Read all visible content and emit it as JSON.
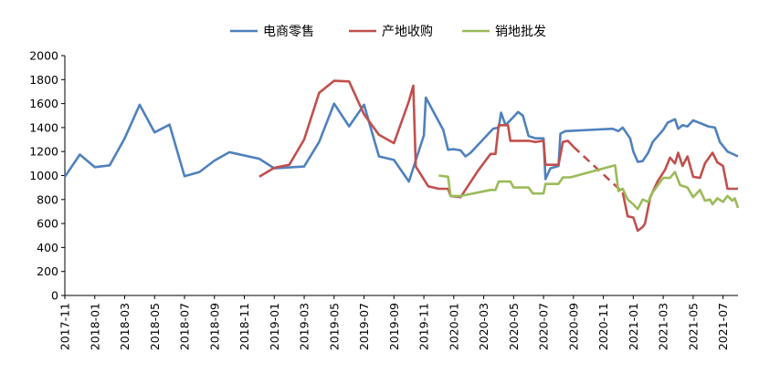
{
  "chart_data": {
    "type": "line",
    "title": "",
    "xlabel": "",
    "ylabel": "",
    "ylim": [
      0,
      2000
    ],
    "yticks": [
      0,
      200,
      400,
      600,
      800,
      1000,
      1200,
      1400,
      1600,
      1800,
      2000
    ],
    "xlim": [
      "2017-11",
      "2021-08"
    ],
    "xticks": [
      "2017-11",
      "2018-01",
      "2018-03",
      "2018-05",
      "2018-07",
      "2018-09",
      "2018-11",
      "2019-01",
      "2019-03",
      "2019-05",
      "2019-07",
      "2019-09",
      "2019-11",
      "2020-01",
      "2020-03",
      "2020-05",
      "2020-07",
      "2020-09",
      "2020-11",
      "2021-01",
      "2021-03",
      "2021-05",
      "2021-07"
    ],
    "grid": false,
    "legend_position": "top",
    "series": [
      {
        "name": "电商零售",
        "color": "#4F81BD",
        "style": "solid",
        "points": [
          [
            "2017-11-01",
            990
          ],
          [
            "2017-12-01",
            1175
          ],
          [
            "2018-01-01",
            1070
          ],
          [
            "2018-02-01",
            1085
          ],
          [
            "2018-03-01",
            1310
          ],
          [
            "2018-04-01",
            1590
          ],
          [
            "2018-05-01",
            1360
          ],
          [
            "2018-06-01",
            1425
          ],
          [
            "2018-07-01",
            995
          ],
          [
            "2018-08-01",
            1030
          ],
          [
            "2018-09-01",
            1125
          ],
          [
            "2018-10-01",
            1195
          ],
          [
            "2018-12-01",
            1140
          ],
          [
            "2019-01-01",
            1060
          ],
          [
            "2019-03-01",
            1075
          ],
          [
            "2019-04-01",
            1280
          ],
          [
            "2019-05-01",
            1600
          ],
          [
            "2019-06-01",
            1410
          ],
          [
            "2019-07-01",
            1590
          ],
          [
            "2019-08-01",
            1160
          ],
          [
            "2019-09-01",
            1130
          ],
          [
            "2019-10-01",
            950
          ],
          [
            "2019-11-01",
            1335
          ],
          [
            "2019-11-05",
            1650
          ],
          [
            "2019-12-10",
            1380
          ],
          [
            "2019-12-20",
            1215
          ],
          [
            "2020-01-01",
            1220
          ],
          [
            "2020-01-15",
            1210
          ],
          [
            "2020-01-25",
            1160
          ],
          [
            "2020-02-05",
            1190
          ],
          [
            "2020-03-20",
            1390
          ],
          [
            "2020-04-01",
            1400
          ],
          [
            "2020-04-06",
            1525
          ],
          [
            "2020-04-15",
            1420
          ],
          [
            "2020-05-01",
            1490
          ],
          [
            "2020-05-10",
            1530
          ],
          [
            "2020-05-20",
            1500
          ],
          [
            "2020-06-01",
            1330
          ],
          [
            "2020-06-15",
            1310
          ],
          [
            "2020-07-01",
            1310
          ],
          [
            "2020-07-05",
            970
          ],
          [
            "2020-07-15",
            1060
          ],
          [
            "2020-08-01",
            1080
          ],
          [
            "2020-08-05",
            1350
          ],
          [
            "2020-08-15",
            1370
          ],
          [
            "2020-11-20",
            1390
          ],
          [
            "2020-12-01",
            1370
          ],
          [
            "2020-12-10",
            1400
          ],
          [
            "2020-12-25",
            1310
          ],
          [
            "2021-01-01",
            1200
          ],
          [
            "2021-01-10",
            1115
          ],
          [
            "2021-01-20",
            1120
          ],
          [
            "2021-02-01",
            1190
          ],
          [
            "2021-02-10",
            1280
          ],
          [
            "2021-03-01",
            1380
          ],
          [
            "2021-03-10",
            1440
          ],
          [
            "2021-03-25",
            1470
          ],
          [
            "2021-04-01",
            1390
          ],
          [
            "2021-04-10",
            1420
          ],
          [
            "2021-04-20",
            1410
          ],
          [
            "2021-05-01",
            1460
          ],
          [
            "2021-05-20",
            1430
          ],
          [
            "2021-06-01",
            1410
          ],
          [
            "2021-06-15",
            1400
          ],
          [
            "2021-06-25",
            1280
          ],
          [
            "2021-07-10",
            1200
          ],
          [
            "2021-08-01",
            1160
          ]
        ]
      },
      {
        "name": "产地收购",
        "color": "#C0504D",
        "style": "solid",
        "points": [
          [
            "2018-12-01",
            990
          ],
          [
            "2019-01-01",
            1065
          ],
          [
            "2019-02-01",
            1090
          ],
          [
            "2019-03-01",
            1300
          ],
          [
            "2019-04-01",
            1690
          ],
          [
            "2019-05-01",
            1790
          ],
          [
            "2019-06-01",
            1785
          ],
          [
            "2019-07-01",
            1510
          ],
          [
            "2019-08-01",
            1340
          ],
          [
            "2019-09-01",
            1270
          ],
          [
            "2019-10-01",
            1620
          ],
          [
            "2019-10-10",
            1750
          ],
          [
            "2019-10-15",
            1075
          ],
          [
            "2019-11-10",
            910
          ],
          [
            "2019-12-01",
            890
          ],
          [
            "2019-12-20",
            890
          ],
          [
            "2019-12-25",
            830
          ],
          [
            "2020-01-15",
            820
          ],
          [
            "2020-02-20",
            1040
          ],
          [
            "2020-03-15",
            1180
          ],
          [
            "2020-03-25",
            1180
          ],
          [
            "2020-04-01",
            1420
          ],
          [
            "2020-04-20",
            1420
          ],
          [
            "2020-04-25",
            1290
          ],
          [
            "2020-06-01",
            1290
          ],
          [
            "2020-06-15",
            1280
          ],
          [
            "2020-07-01",
            1290
          ],
          [
            "2020-07-05",
            1090
          ],
          [
            "2020-08-01",
            1090
          ],
          [
            "2020-08-10",
            1280
          ],
          [
            "2020-08-20",
            1290
          ],
          [
            "2020-09-01",
            1240
          ]
        ]
      },
      {
        "name": "产地收购",
        "color": "#C0504D",
        "style": "dashed",
        "points": [
          [
            "2020-09-01",
            1240
          ],
          [
            "2020-12-10",
            860
          ]
        ]
      },
      {
        "name": "产地收购",
        "color": "#C0504D",
        "style": "solid",
        "points": [
          [
            "2020-12-10",
            860
          ],
          [
            "2020-12-20",
            660
          ],
          [
            "2021-01-01",
            650
          ],
          [
            "2021-01-10",
            540
          ],
          [
            "2021-01-20",
            570
          ],
          [
            "2021-01-25",
            600
          ],
          [
            "2021-02-05",
            820
          ],
          [
            "2021-02-20",
            950
          ],
          [
            "2021-03-05",
            1050
          ],
          [
            "2021-03-15",
            1150
          ],
          [
            "2021-03-25",
            1100
          ],
          [
            "2021-04-01",
            1190
          ],
          [
            "2021-04-10",
            1080
          ],
          [
            "2021-04-20",
            1160
          ],
          [
            "2021-05-01",
            990
          ],
          [
            "2021-05-15",
            980
          ],
          [
            "2021-05-25",
            1100
          ],
          [
            "2021-06-10",
            1190
          ],
          [
            "2021-06-20",
            1110
          ],
          [
            "2021-07-01",
            1080
          ],
          [
            "2021-07-10",
            890
          ],
          [
            "2021-08-01",
            890
          ]
        ]
      },
      {
        "name": "销地批发",
        "color": "#9BBB59",
        "style": "solid",
        "points": [
          [
            "2019-12-01",
            1000
          ],
          [
            "2019-12-20",
            990
          ],
          [
            "2019-12-25",
            830
          ],
          [
            "2020-01-15",
            830
          ],
          [
            "2020-03-15",
            880
          ],
          [
            "2020-03-25",
            880
          ],
          [
            "2020-04-01",
            950
          ],
          [
            "2020-04-25",
            950
          ],
          [
            "2020-05-01",
            900
          ],
          [
            "2020-06-01",
            900
          ],
          [
            "2020-06-10",
            850
          ],
          [
            "2020-07-01",
            850
          ],
          [
            "2020-07-05",
            930
          ],
          [
            "2020-08-01",
            930
          ],
          [
            "2020-08-10",
            985
          ],
          [
            "2020-08-25",
            985
          ],
          [
            "2020-11-25",
            1085
          ],
          [
            "2020-12-01",
            870
          ],
          [
            "2020-12-10",
            890
          ],
          [
            "2020-12-20",
            800
          ],
          [
            "2021-01-01",
            760
          ],
          [
            "2021-01-10",
            720
          ],
          [
            "2021-01-20",
            800
          ],
          [
            "2021-02-01",
            780
          ],
          [
            "2021-02-10",
            860
          ],
          [
            "2021-03-01",
            980
          ],
          [
            "2021-03-15",
            980
          ],
          [
            "2021-03-25",
            1030
          ],
          [
            "2021-04-05",
            920
          ],
          [
            "2021-04-20",
            900
          ],
          [
            "2021-05-01",
            820
          ],
          [
            "2021-05-15",
            880
          ],
          [
            "2021-05-25",
            790
          ],
          [
            "2021-06-05",
            800
          ],
          [
            "2021-06-10",
            760
          ],
          [
            "2021-06-20",
            810
          ],
          [
            "2021-07-01",
            780
          ],
          [
            "2021-07-10",
            830
          ],
          [
            "2021-07-20",
            790
          ],
          [
            "2021-07-25",
            810
          ],
          [
            "2021-08-01",
            730
          ]
        ]
      }
    ],
    "legend": [
      {
        "label": "电商零售",
        "color": "#4F81BD"
      },
      {
        "label": "产地收购",
        "color": "#C0504D"
      },
      {
        "label": "销地批发",
        "color": "#9BBB59"
      }
    ]
  }
}
